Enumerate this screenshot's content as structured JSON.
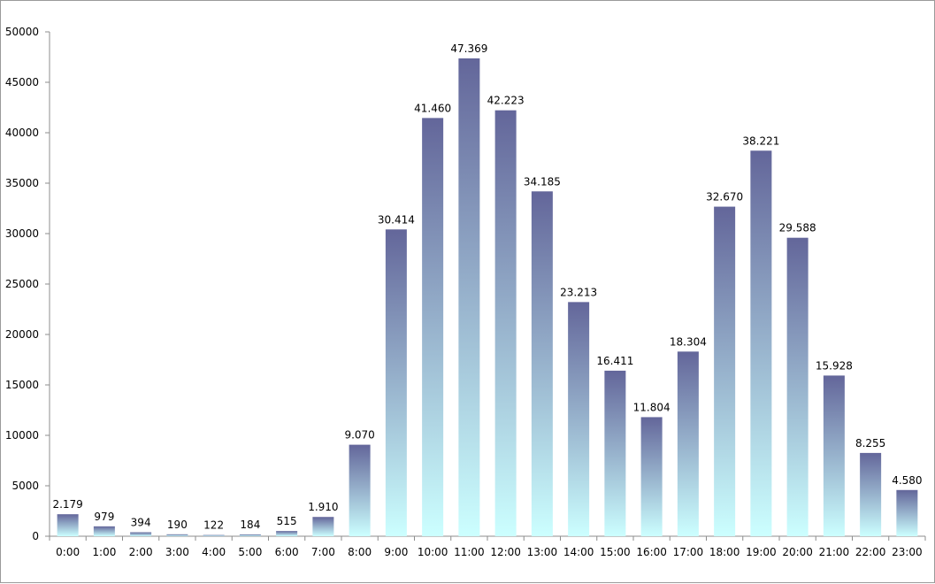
{
  "chart_data": {
    "type": "bar",
    "title": "",
    "xlabel": "",
    "ylabel": "",
    "ylim": [
      0,
      50000
    ],
    "y_ticks": [
      0,
      5000,
      10000,
      15000,
      20000,
      25000,
      30000,
      35000,
      40000,
      45000,
      50000
    ],
    "y_tick_labels": [
      "0",
      "5000",
      "10000",
      "15000",
      "20000",
      "25000",
      "30000",
      "35000",
      "40000",
      "45000",
      "50000"
    ],
    "grid": false,
    "legend": "none",
    "categories": [
      "0:00",
      "1:00",
      "2:00",
      "3:00",
      "4:00",
      "5:00",
      "6:00",
      "7:00",
      "8:00",
      "9:00",
      "10:00",
      "11:00",
      "12:00",
      "13:00",
      "14:00",
      "15:00",
      "16:00",
      "17:00",
      "18:00",
      "19:00",
      "20:00",
      "21:00",
      "22:00",
      "23:00"
    ],
    "values": [
      2179,
      979,
      394,
      190,
      122,
      184,
      515,
      1910,
      9070,
      30414,
      41460,
      47369,
      42223,
      34185,
      23213,
      16411,
      11804,
      18304,
      32670,
      38221,
      29588,
      15928,
      8255,
      4580
    ],
    "data_labels": [
      "2.179",
      "979",
      "394",
      "190",
      "122",
      "184",
      "515",
      "1.910",
      "9.070",
      "30.414",
      "41.460",
      "47.369",
      "42.223",
      "34.185",
      "23.213",
      "16.411",
      "11.804",
      "18.304",
      "32.670",
      "38.221",
      "29.588",
      "15.928",
      "8.255",
      "4.580"
    ],
    "colors": {
      "bar_top": "#63669a",
      "bar_bottom": "#ccffff",
      "axis": "#8c8c8c"
    }
  }
}
